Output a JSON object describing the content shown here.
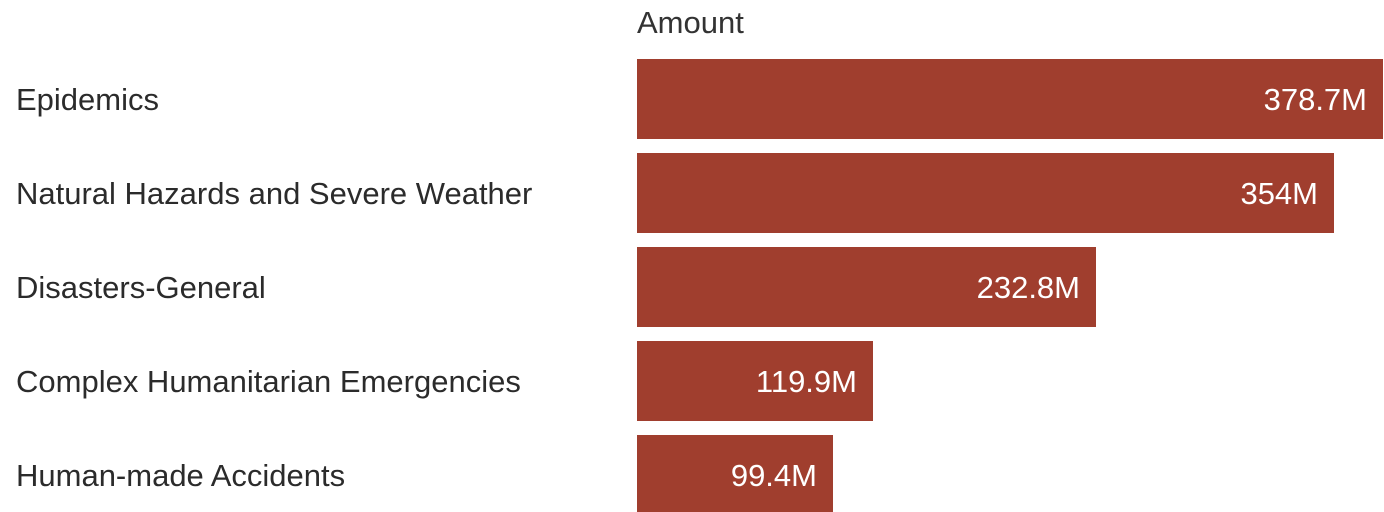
{
  "colors": {
    "bar": "#a03e2e",
    "background": "#ffffff",
    "label_text": "#2b2b2b",
    "value_text": "#ffffff"
  },
  "chart_data": {
    "type": "bar",
    "orientation": "horizontal",
    "column_header": "Amount",
    "categories": [
      "Epidemics",
      "Natural Hazards and Severe Weather",
      "Disasters-General",
      "Complex Humanitarian Emergencies",
      "Human-made Accidents"
    ],
    "values": [
      378.7,
      354,
      232.8,
      119.9,
      99.4
    ],
    "value_labels": [
      "378.7M",
      "354M",
      "232.8M",
      "119.9M",
      "99.4M"
    ],
    "unit": "M",
    "xlim": [
      0,
      378.7
    ],
    "grid": false,
    "legend": "none"
  }
}
